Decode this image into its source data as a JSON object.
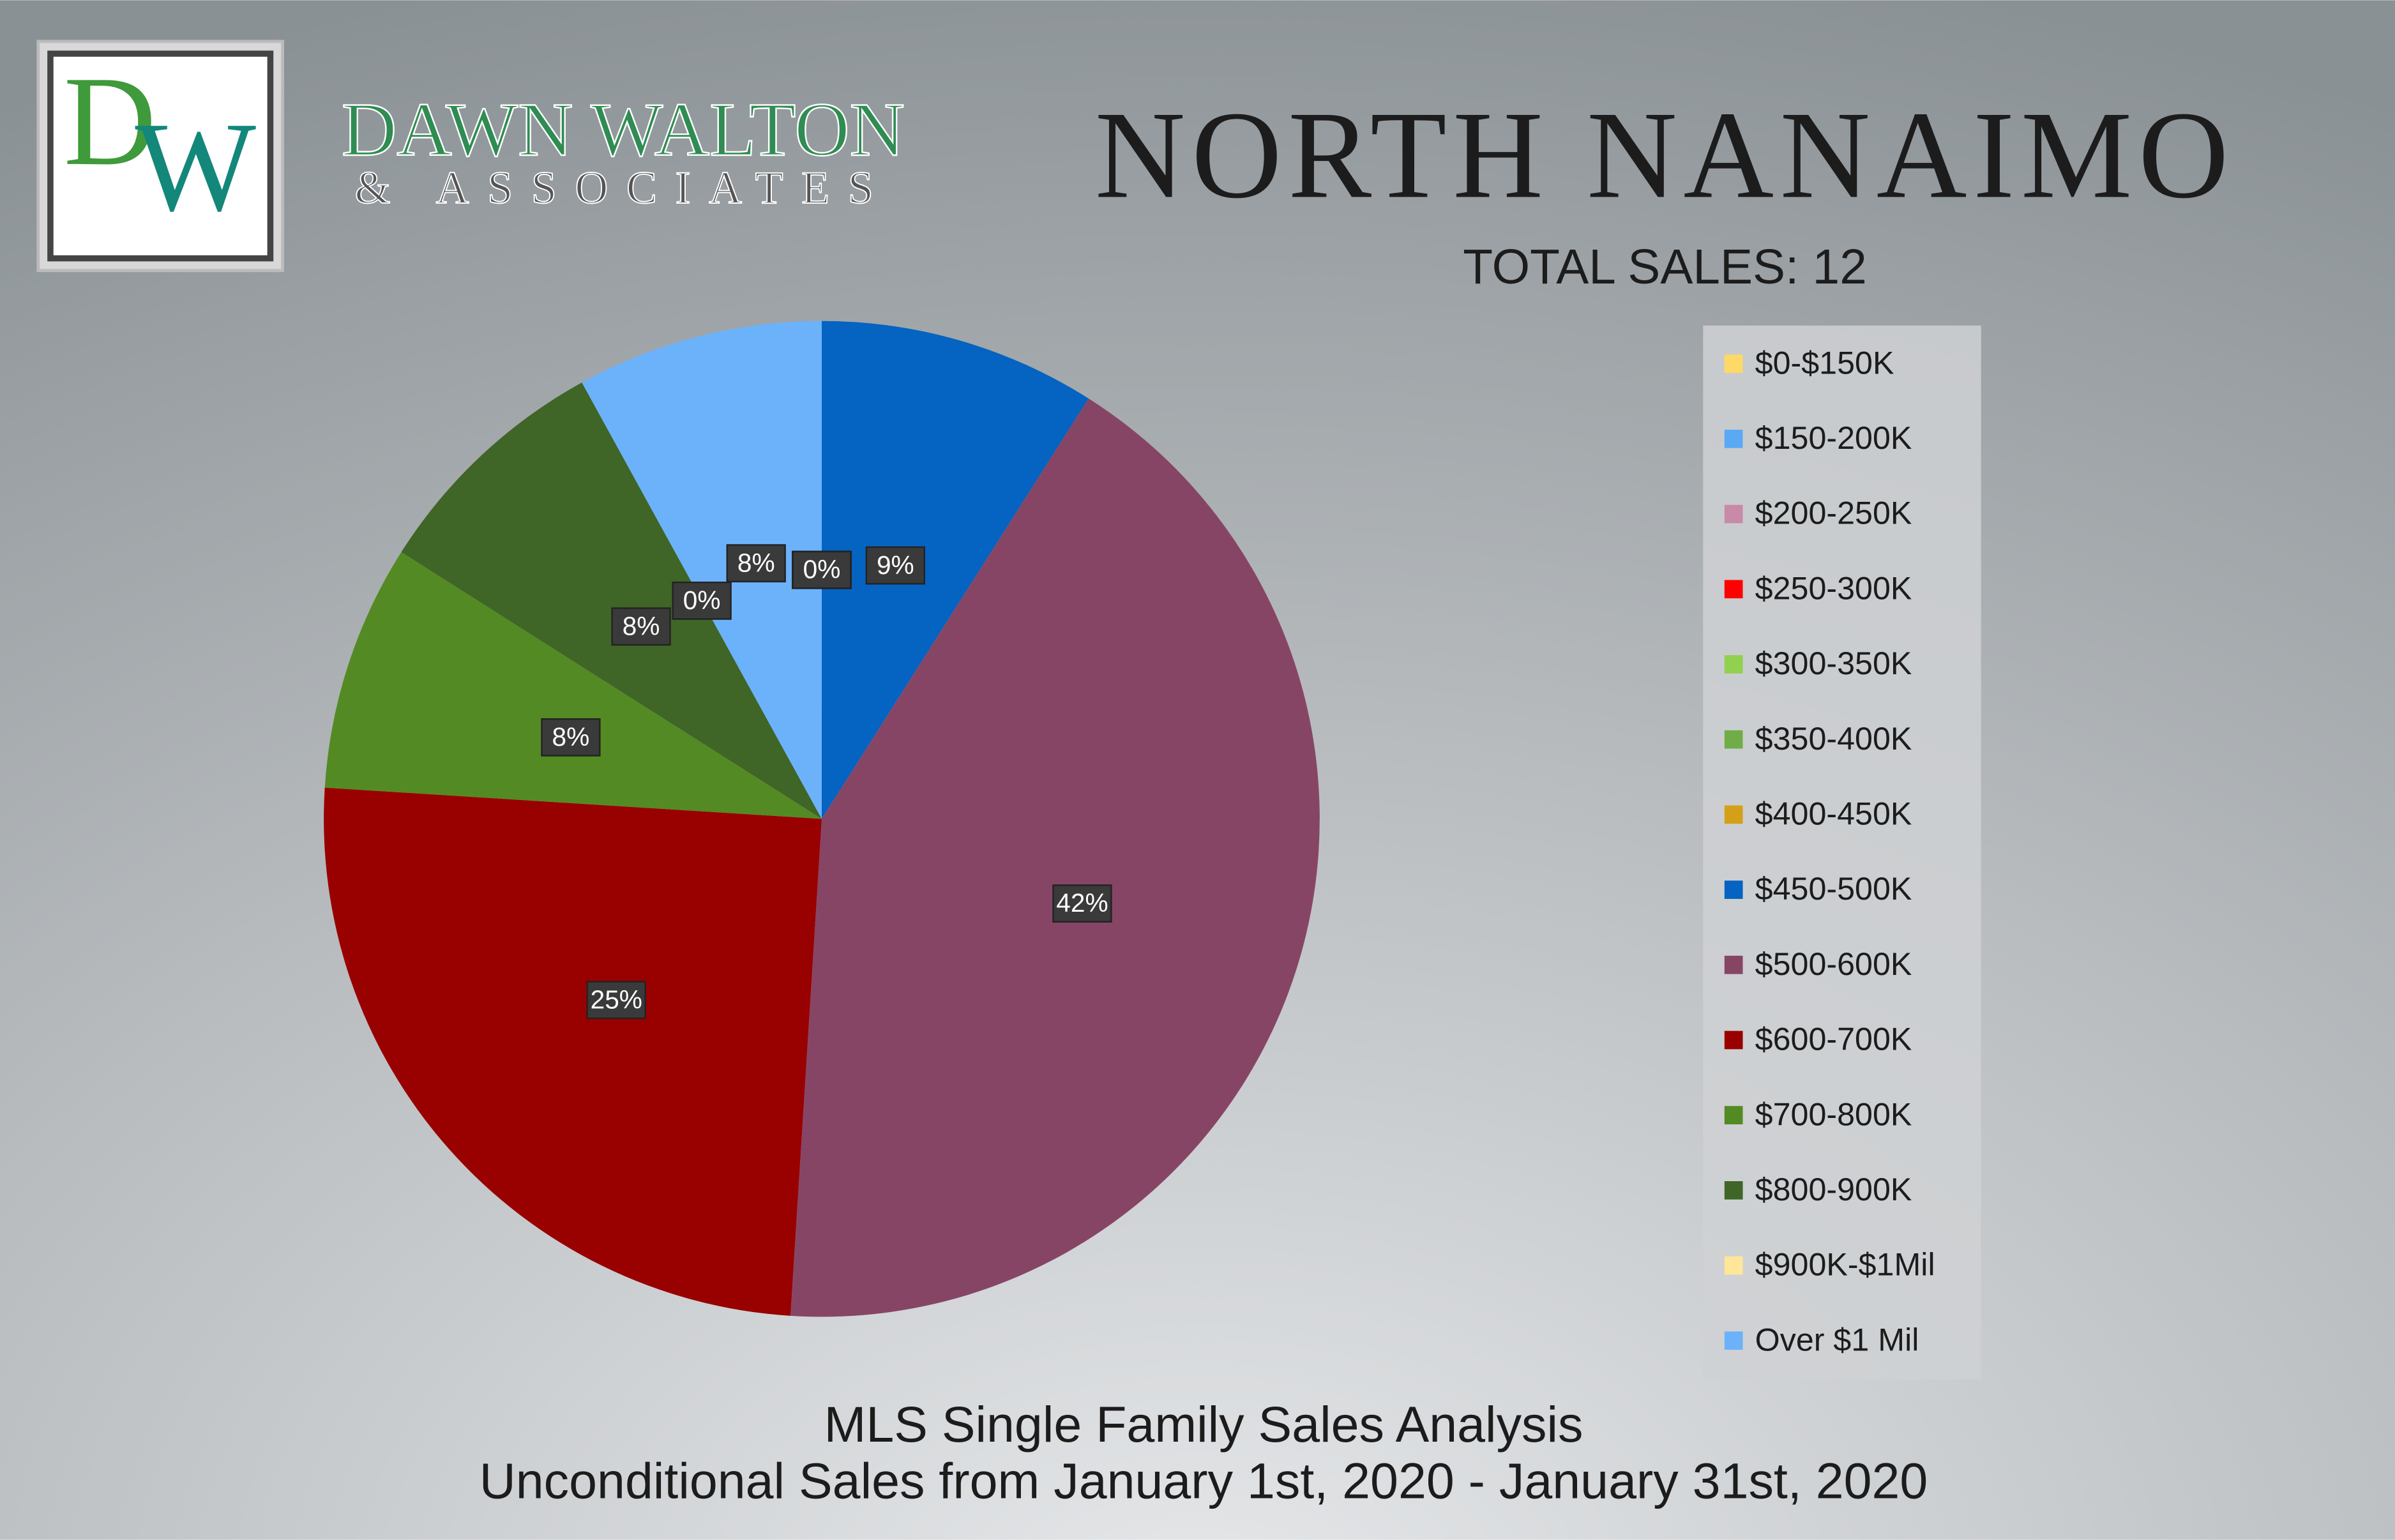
{
  "logo": {
    "monogram": [
      "D",
      "W"
    ],
    "name": "DAWN WALTON",
    "tagline": "& ASSOCIATES"
  },
  "chart_data": {
    "type": "pie",
    "title": "NORTH NANAIMO",
    "subtitle": "TOTAL SALES: 12",
    "notes": [
      "MLS Single Family Sales Analysis",
      "Unconditional Sales from January 1st, 2020 - January 31st, 2020"
    ],
    "categories": [
      "$0-$150K",
      "$150-200K",
      "$200-250K",
      "$250-300K",
      "$300-350K",
      "$350-400K",
      "$400-450K",
      "$450-500K",
      "$500-600K",
      "$600-700K",
      "$700-800K",
      "$800-900K",
      "$900K-$1Mil",
      "Over $1 Mil"
    ],
    "values": [
      0,
      0,
      0,
      0,
      0,
      0,
      0,
      9,
      42,
      25,
      8,
      8,
      0,
      8
    ],
    "value_labels": [
      "0%",
      "0%",
      "0%",
      "0%",
      "0%",
      "0%",
      "0%",
      "9%",
      "42%",
      "25%",
      "8%",
      "8%",
      "0%",
      "8%"
    ],
    "colors": [
      "#ffd966",
      "#5aa9f5",
      "#c88aa8",
      "#ff0000",
      "#92d050",
      "#70ad47",
      "#d4a017",
      "#0563c1",
      "#874566",
      "#990000",
      "#548a23",
      "#3f6527",
      "#ffe699",
      "#6cb2fb"
    ],
    "legend": "right"
  }
}
